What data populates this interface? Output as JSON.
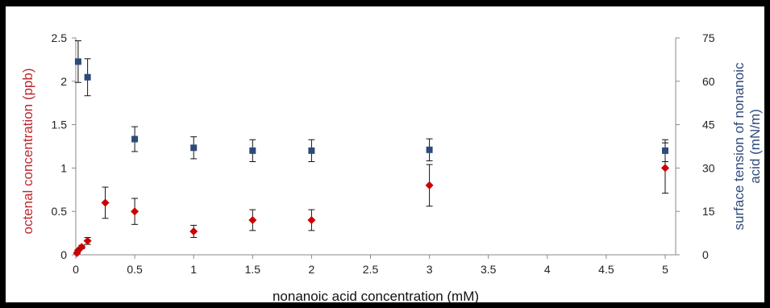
{
  "chart_data": {
    "type": "scatter",
    "title": "",
    "xlabel": "nonanoic acid concentration (mM)",
    "ylabel_left": "octenal concentration (ppb)",
    "ylabel_right_line1": "surface tension of nonanoic",
    "ylabel_right_line2": "acid (mN/m)",
    "xlim": [
      0,
      5.2
    ],
    "ylim_left": [
      0,
      2.5
    ],
    "ylim_right": [
      0,
      75
    ],
    "x_ticks": [
      "0",
      "0.5",
      "1",
      "1.5",
      "2",
      "2.5",
      "3",
      "3.5",
      "4",
      "4.5",
      "5"
    ],
    "y_left_ticks": [
      "0",
      "0.5",
      "1",
      "1.5",
      "2",
      "2.5"
    ],
    "y_right_ticks": [
      "0",
      "15",
      "30",
      "45",
      "60",
      "75"
    ],
    "grid": false,
    "colors": {
      "octenal": "#cc0000",
      "surface_tension": "#2e4a7a",
      "left_axis_label": "#c0282d",
      "right_axis_label": "#2e4a7a"
    },
    "series": [
      {
        "key": "octenal",
        "axis": "left",
        "marker": "diamond",
        "points": [
          {
            "x": 0.01,
            "y": 0.02,
            "err": 0.01
          },
          {
            "x": 0.02,
            "y": 0.05,
            "err": 0.01
          },
          {
            "x": 0.05,
            "y": 0.09,
            "err": 0.02
          },
          {
            "x": 0.1,
            "y": 0.16,
            "err": 0.04
          },
          {
            "x": 0.25,
            "y": 0.6,
            "err": 0.18
          },
          {
            "x": 0.5,
            "y": 0.5,
            "err": 0.15
          },
          {
            "x": 1.0,
            "y": 0.27,
            "err": 0.07
          },
          {
            "x": 1.5,
            "y": 0.4,
            "err": 0.12
          },
          {
            "x": 2.0,
            "y": 0.4,
            "err": 0.12
          },
          {
            "x": 3.0,
            "y": 0.8,
            "err": 0.24
          },
          {
            "x": 5.0,
            "y": 1.0,
            "err": 0.29
          }
        ]
      },
      {
        "key": "surface_tension",
        "axis": "right",
        "marker": "square",
        "points": [
          {
            "x": 0.02,
            "y": 66.8,
            "err": 7.2
          },
          {
            "x": 0.1,
            "y": 61.4,
            "err": 6.4
          },
          {
            "x": 0.5,
            "y": 40.0,
            "err": 4.3
          },
          {
            "x": 1.0,
            "y": 37.0,
            "err": 3.8
          },
          {
            "x": 1.5,
            "y": 36.0,
            "err": 3.8
          },
          {
            "x": 2.0,
            "y": 36.0,
            "err": 3.8
          },
          {
            "x": 3.0,
            "y": 36.3,
            "err": 3.8
          },
          {
            "x": 5.0,
            "y": 36.0,
            "err": 3.8
          }
        ]
      }
    ]
  }
}
